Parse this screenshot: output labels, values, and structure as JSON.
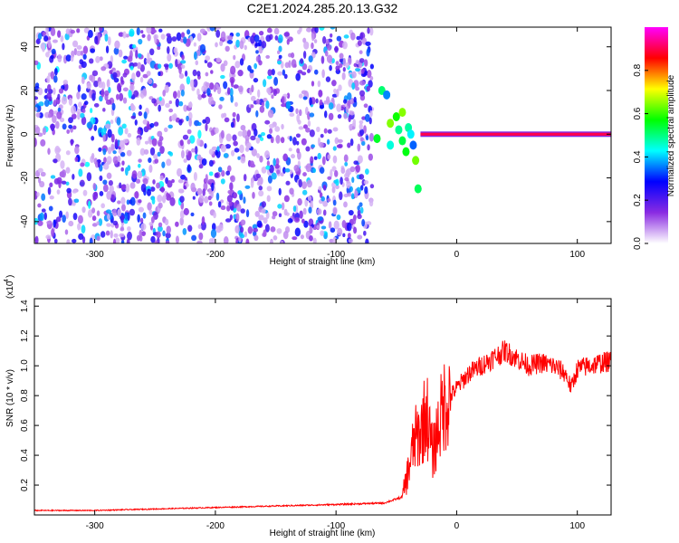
{
  "figure_title": "C2E1.2024.285.20.13.G32",
  "chart_data": [
    {
      "type": "heatmap",
      "title": "C2E1.2024.285.20.13.G32",
      "xlabel": "Height of straight line (km)",
      "ylabel": "Frequency (Hz)",
      "xlim": [
        -350,
        128
      ],
      "ylim": [
        -50,
        49
      ],
      "xticks": [
        -300,
        -200,
        -100,
        0,
        100
      ],
      "yticks": [
        -40,
        -20,
        0,
        20,
        40
      ],
      "colorbar": {
        "label": "Normalized spectral amplitude",
        "range": [
          0.0,
          1.0
        ],
        "ticks": [
          0.0,
          0.2,
          0.4,
          0.6,
          0.8
        ],
        "colors": [
          "#ffffff",
          "#8a2be2",
          "#0000ff",
          "#00ffff",
          "#00ff00",
          "#ffff00",
          "#ff0000",
          "#ff00ff"
        ]
      },
      "features": [
        {
          "name": "broadband noise",
          "x_range": [
            -350,
            -70
          ],
          "freq_range": [
            -50,
            49
          ],
          "amplitude": "0.05-0.4"
        },
        {
          "name": "scattered echoes",
          "x_range": [
            -70,
            -30
          ],
          "freq_range": [
            -30,
            25
          ],
          "amplitude": "0.3-0.7"
        },
        {
          "name": "zero-frequency ridge",
          "x_range": [
            -30,
            128
          ],
          "freq": 0,
          "amplitude": "0.85-1.0"
        }
      ],
      "grid": false
    },
    {
      "type": "line",
      "xlabel": "Height of straight line (km)",
      "ylabel": "SNR (10 * v/v)",
      "y_scale_label": "(x10",
      "y_scale_exponent": "4",
      "xlim": [
        -350,
        128
      ],
      "ylim": [
        0.0,
        1.45
      ],
      "xticks": [
        -300,
        -200,
        -100,
        0,
        100
      ],
      "yticks": [
        0.2,
        0.4,
        0.6,
        0.8,
        1.0,
        1.2,
        1.4
      ],
      "series": [
        {
          "color": "#ff0000",
          "x": [
            -350,
            -300,
            -250,
            -200,
            -150,
            -100,
            -60,
            -45,
            -40,
            -35,
            -30,
            -25,
            -20,
            -15,
            -10,
            -5,
            0,
            10,
            20,
            30,
            40,
            50,
            60,
            70,
            80,
            90,
            95,
            100,
            110,
            120,
            128
          ],
          "y": [
            0.03,
            0.03,
            0.04,
            0.05,
            0.06,
            0.07,
            0.08,
            0.12,
            0.3,
            0.5,
            0.55,
            0.7,
            0.4,
            0.6,
            0.75,
            0.8,
            0.85,
            0.95,
            1.0,
            1.05,
            1.1,
            1.05,
            1.0,
            1.02,
            1.0,
            0.95,
            0.85,
            0.98,
            1.0,
            1.02,
            1.03
          ]
        }
      ]
    }
  ]
}
